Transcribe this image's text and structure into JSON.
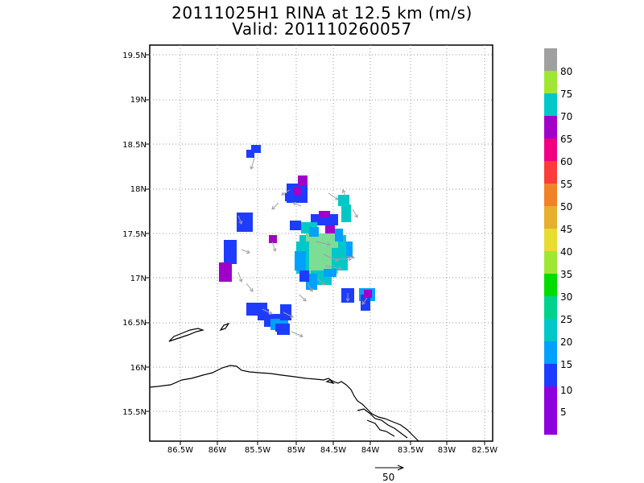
{
  "title": {
    "line1": "20111025H1 RINA at 12.5 km (m/s)",
    "line2": "Valid: 201110260057"
  },
  "axes": {
    "lat_labels": [
      "19.5N",
      "19N",
      "18.5N",
      "18N",
      "17.5N",
      "17N",
      "16.5N",
      "16N",
      "15.5N"
    ],
    "lon_labels": [
      "86.5W",
      "86W",
      "85.5W",
      "85W",
      "84.5W",
      "84W",
      "83.5W",
      "83W",
      "82.5W"
    ],
    "grid": "dotted"
  },
  "colorbar": {
    "labels": [
      "80",
      "75",
      "70",
      "65",
      "60",
      "55",
      "50",
      "45",
      "40",
      "35",
      "30",
      "25",
      "20",
      "15",
      "10",
      "5"
    ],
    "colors": [
      "#a0a0a0",
      "#a0e632",
      "#00c8c8",
      "#a000c8",
      "#f00082",
      "#fa3c3c",
      "#f08228",
      "#e6af2d",
      "#e6dc32",
      "#a0e632",
      "#00dc00",
      "#00d28c",
      "#00c8c8",
      "#00a0ff",
      "#1e3cff",
      "#8c00dc"
    ]
  },
  "wind_colors": {
    "blue": "#1e3cff",
    "light_blue": "#00a0ff",
    "cyan": "#00c8c8",
    "green": "#00d28c",
    "light_green": "#7ddc96",
    "purple": "#a000c8",
    "gray_vector": "#a0a0a0"
  },
  "reference_vector": {
    "label": "50"
  }
}
